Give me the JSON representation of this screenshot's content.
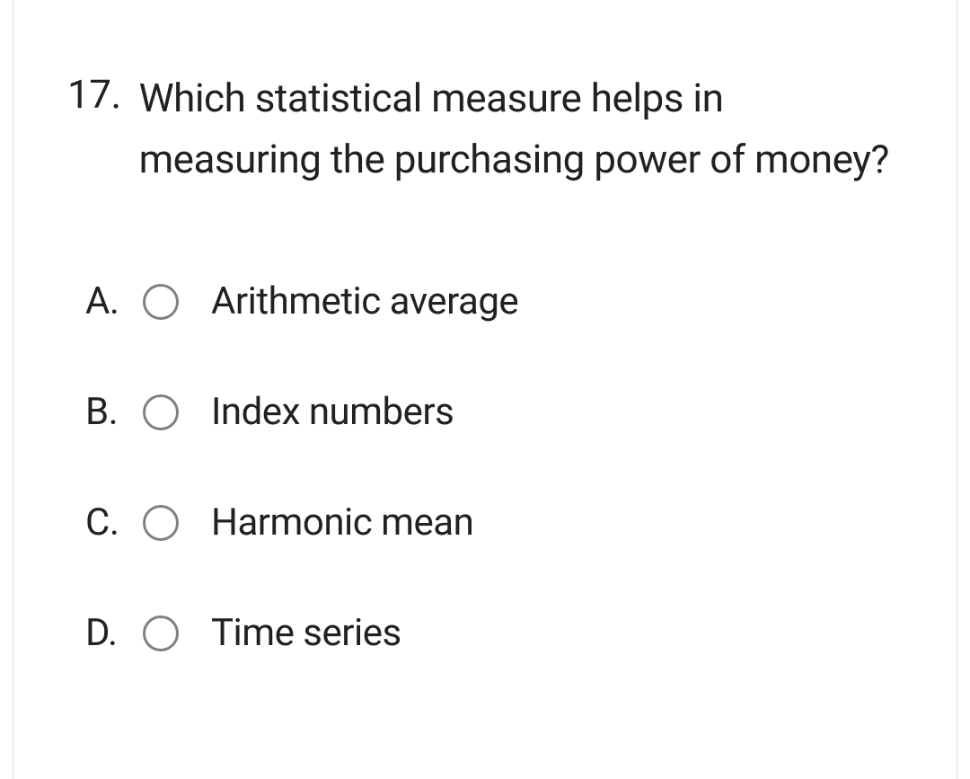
{
  "question": {
    "number": "17.",
    "text": "Which statistical measure helps in measuring the purchasing power of money?"
  },
  "options": [
    {
      "letter": "A.",
      "label": "Arithmetic average"
    },
    {
      "letter": "B.",
      "label": "Index numbers"
    },
    {
      "letter": "C.",
      "label": "Harmonic mean"
    },
    {
      "letter": "D.",
      "label": "Time series"
    }
  ],
  "colors": {
    "text": "#212121",
    "radio_border": "#808080",
    "border": "#e0e0e0",
    "background": "#ffffff"
  },
  "typography": {
    "question_fontsize": 44,
    "option_fontsize": 42,
    "font_family": "Roboto, Arial, sans-serif",
    "font_weight": 400
  }
}
